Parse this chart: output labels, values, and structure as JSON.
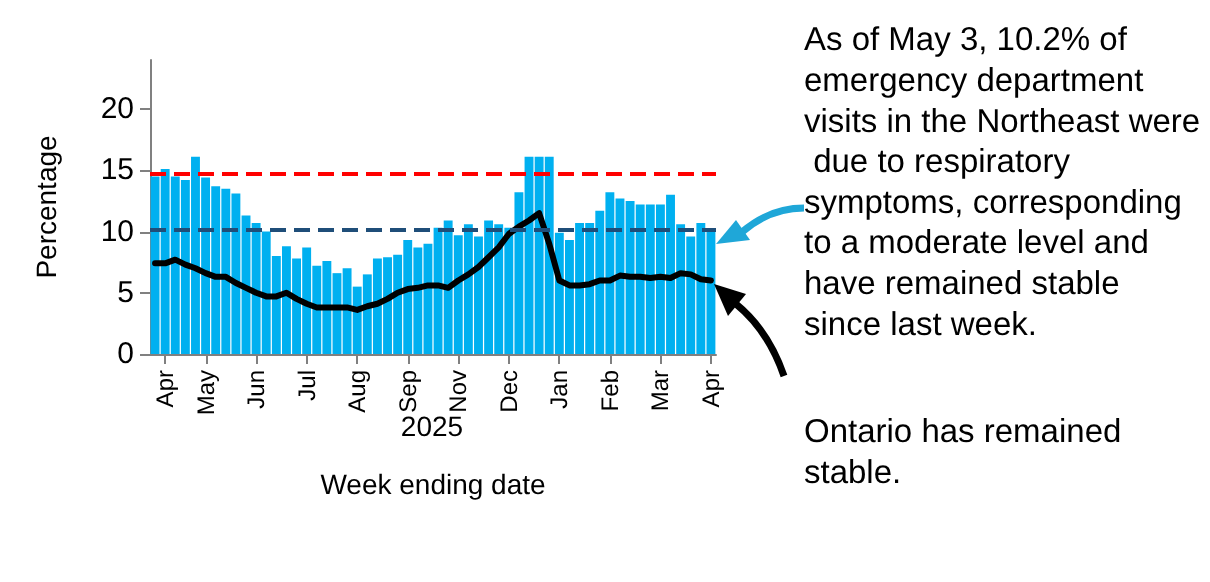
{
  "chart_data": {
    "type": "bar",
    "xlabel": "Week ending date",
    "ylabel": "Percentage",
    "categories": [
      null,
      "Apr",
      null,
      null,
      null,
      "May",
      null,
      null,
      null,
      null,
      "Jun",
      null,
      null,
      null,
      null,
      "Jul",
      null,
      null,
      null,
      null,
      "Aug",
      null,
      null,
      null,
      null,
      "Sep",
      null,
      null,
      null,
      null,
      "Nov",
      null,
      null,
      null,
      null,
      "Dec",
      null,
      null,
      null,
      null,
      "Jan",
      null,
      null,
      null,
      null,
      "Feb",
      null,
      null,
      null,
      null,
      "Mar",
      null,
      null,
      null,
      null,
      "Apr"
    ],
    "series": [
      {
        "color": "#00b0f0",
        "values": [
          14.5,
          15.1,
          14.5,
          14.2,
          16.1,
          14.4,
          13.7,
          13.5,
          13.1,
          11.3,
          10.7,
          10.0,
          8.0,
          8.8,
          7.8,
          8.7,
          7.2,
          7.6,
          6.6,
          7.0,
          5.5,
          6.5,
          7.8,
          7.9,
          8.1,
          9.3,
          8.7,
          9.0,
          10.3,
          10.9,
          9.7,
          10.6,
          9.6,
          10.9,
          10.6,
          10.3,
          13.2,
          16.1,
          16.1,
          16.1,
          9.9,
          9.3,
          10.7,
          10.7,
          11.7,
          13.2,
          12.7,
          12.5,
          12.2,
          12.2,
          12.2,
          13.0,
          10.6,
          9.6,
          10.7,
          10.2
        ]
      },
      {
        "type": "line",
        "color": "#000000",
        "values": [
          7.4,
          7.4,
          7.7,
          7.3,
          7.0,
          6.6,
          6.3,
          6.3,
          5.8,
          5.4,
          5.0,
          4.7,
          4.7,
          5.0,
          4.5,
          4.1,
          3.8,
          3.8,
          3.8,
          3.8,
          3.6,
          3.9,
          4.1,
          4.5,
          5.0,
          5.3,
          5.4,
          5.6,
          5.6,
          5.4,
          6.0,
          6.5,
          7.1,
          7.9,
          8.7,
          9.8,
          10.4,
          10.9,
          11.5,
          9.0,
          6.0,
          5.6,
          5.6,
          5.7,
          6.0,
          6.0,
          6.4,
          6.3,
          6.3,
          6.2,
          6.3,
          6.2,
          6.6,
          6.5,
          6.1,
          6.0
        ]
      }
    ],
    "ylim": [
      0,
      24
    ],
    "yticks": [
      0,
      5,
      10,
      15,
      20
    ],
    "grid": false,
    "marker": "none",
    "line_style": "solid",
    "ref_lines": [
      {
        "axis": "y",
        "value": 14.7,
        "color": "#ff0000",
        "line_style": "dashed"
      },
      {
        "axis": "y",
        "value": 10.2,
        "color": "#1f4e79",
        "line_style": "dashed"
      }
    ],
    "annotations": [
      "2025",
      "As of May 3, 10.2% of emergency department visits in the Northeast were due to respiratory symptoms, corresponding to a moderate level and have remained stable since last week.",
      "Ontario has remained stable."
    ]
  }
}
